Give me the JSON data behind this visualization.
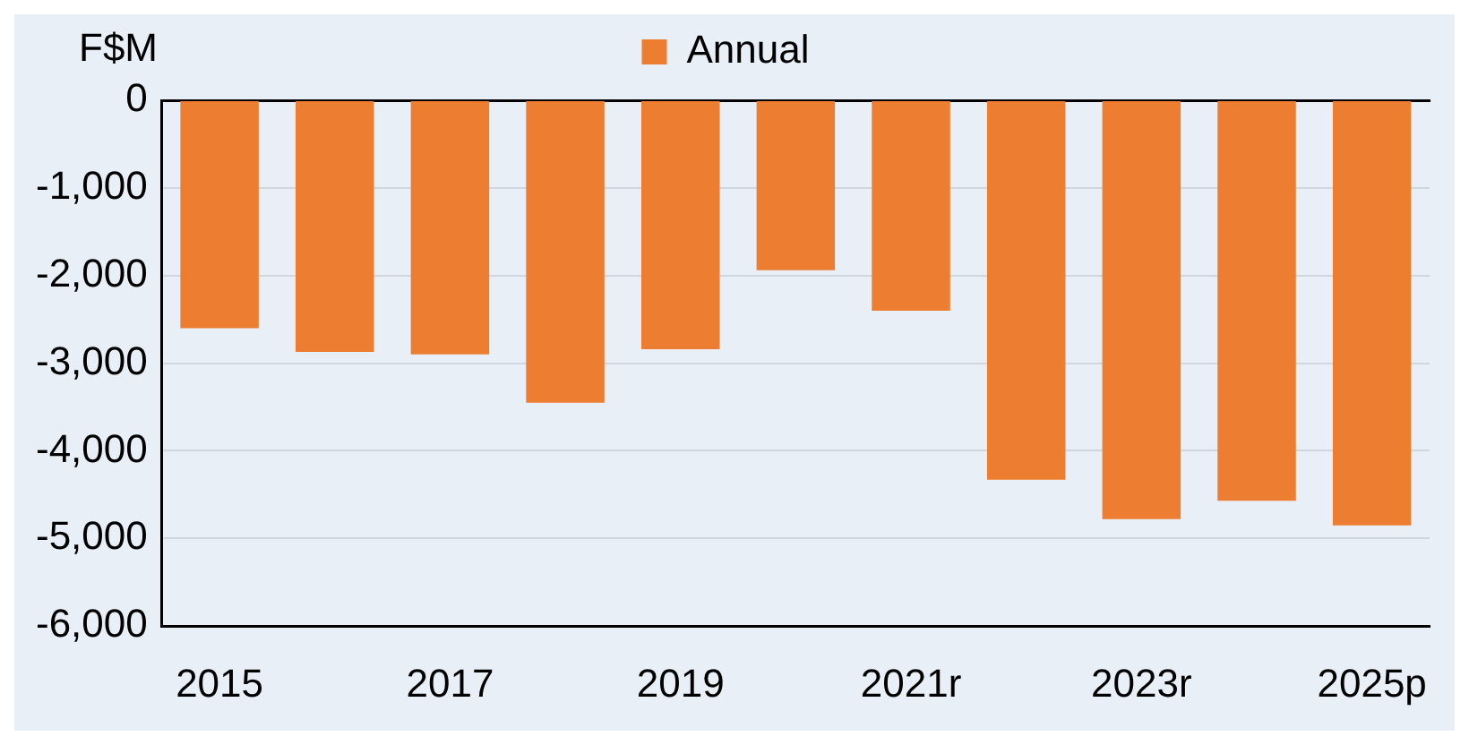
{
  "chart_data": {
    "type": "bar",
    "ylabel": "F$M",
    "categories": [
      "2015",
      null,
      "2017",
      null,
      "2019",
      null,
      "2021r",
      null,
      "2023r",
      null,
      "2025p"
    ],
    "series": [
      {
        "name": "Annual",
        "color": "#ed7d31",
        "values": [
          -2600,
          -2870,
          -2900,
          -3450,
          -2840,
          -1940,
          -2400,
          -4330,
          -4780,
          -4570,
          -4850
        ]
      }
    ],
    "ylim": [
      -6000,
      0
    ],
    "yticks": [
      {
        "value": 0,
        "label": "0"
      },
      {
        "value": -1000,
        "label": "-1,000"
      },
      {
        "value": -2000,
        "label": "-2,000"
      },
      {
        "value": -3000,
        "label": "-3,000"
      },
      {
        "value": -4000,
        "label": "-4,000"
      },
      {
        "value": -5000,
        "label": "-5,000"
      },
      {
        "value": -6000,
        "label": "-6,000"
      }
    ],
    "grid": "y",
    "legend": "top"
  }
}
